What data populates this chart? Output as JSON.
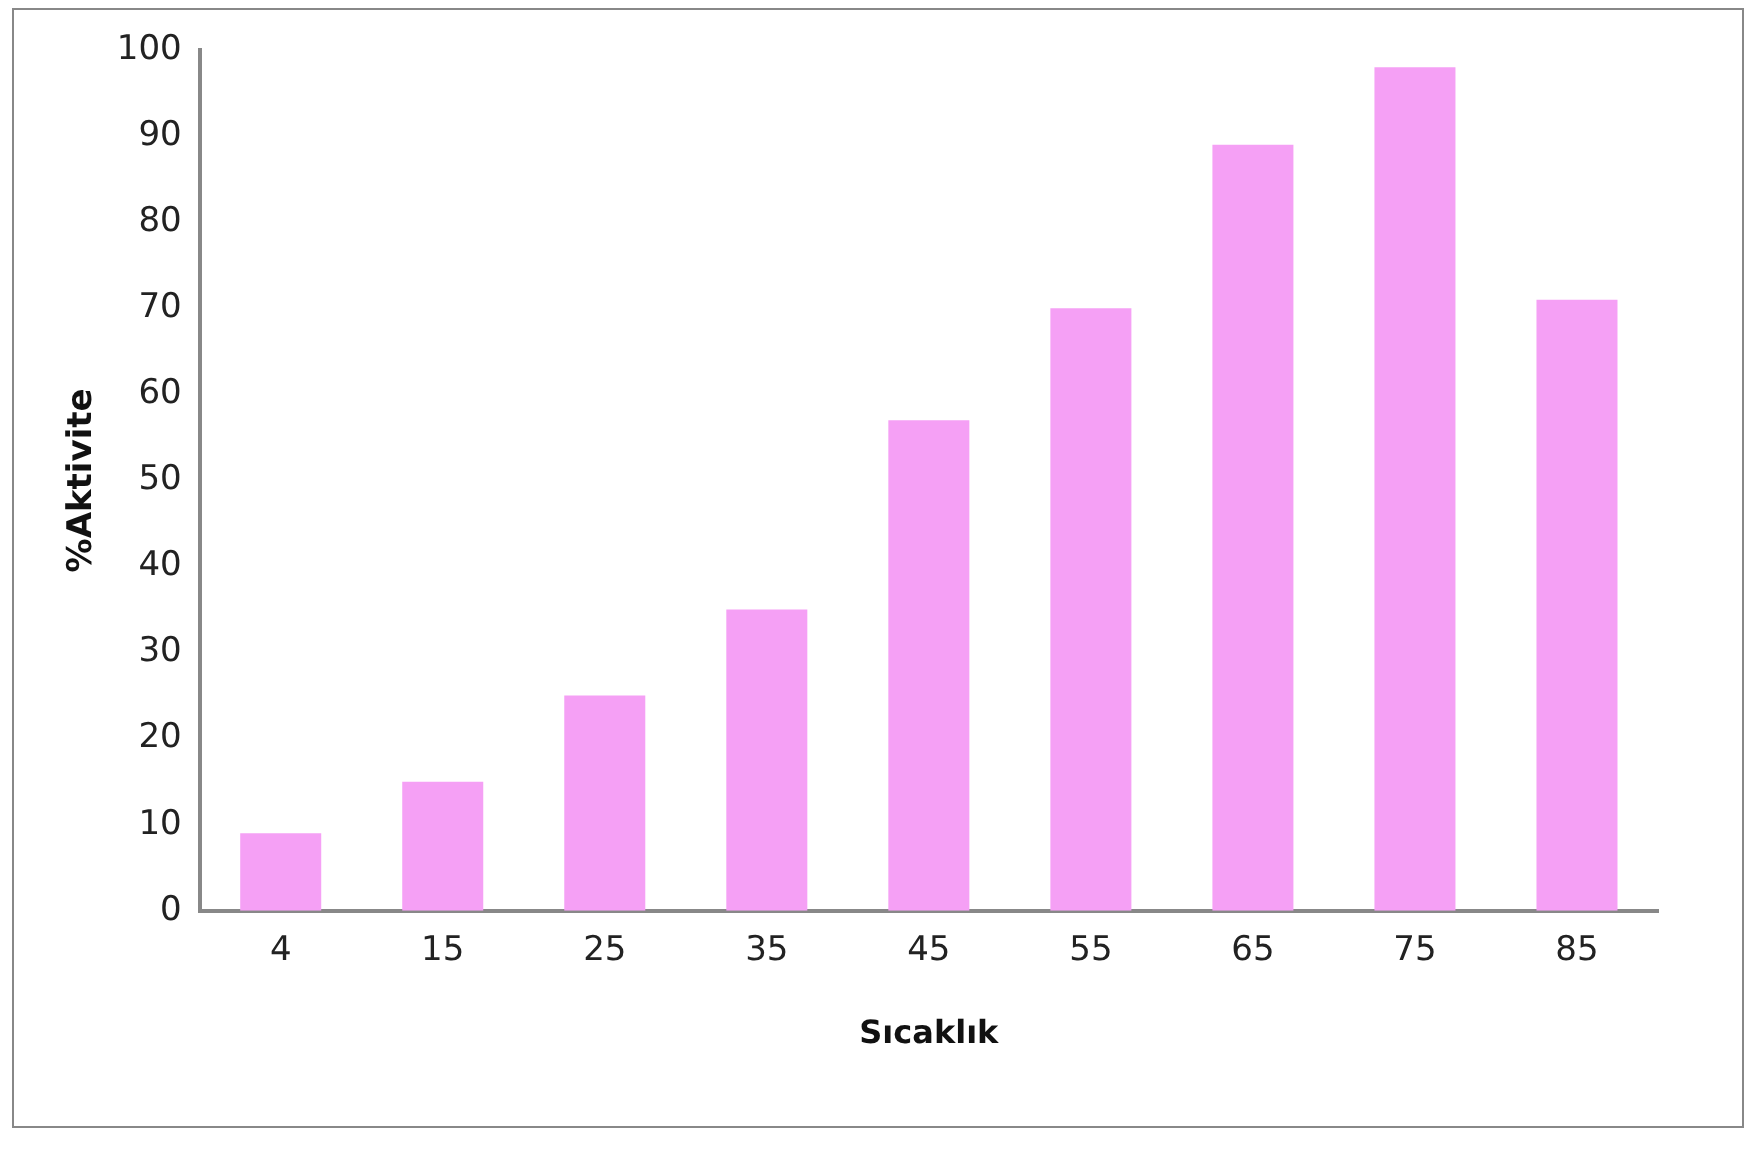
{
  "chart_data": {
    "type": "bar",
    "xlabel": "Sıcaklık",
    "ylabel": "%Aktivite",
    "categories": [
      "4",
      "15",
      "25",
      "35",
      "45",
      "55",
      "65",
      "75",
      "85"
    ],
    "values": [
      9,
      15,
      25,
      35,
      57,
      70,
      89,
      98,
      71
    ],
    "color": "#f5a0f5",
    "ylim": [
      0,
      100
    ],
    "yticks": [
      0,
      10,
      20,
      30,
      40,
      50,
      60,
      70,
      80,
      90,
      100
    ],
    "grid": false,
    "legend": false
  }
}
